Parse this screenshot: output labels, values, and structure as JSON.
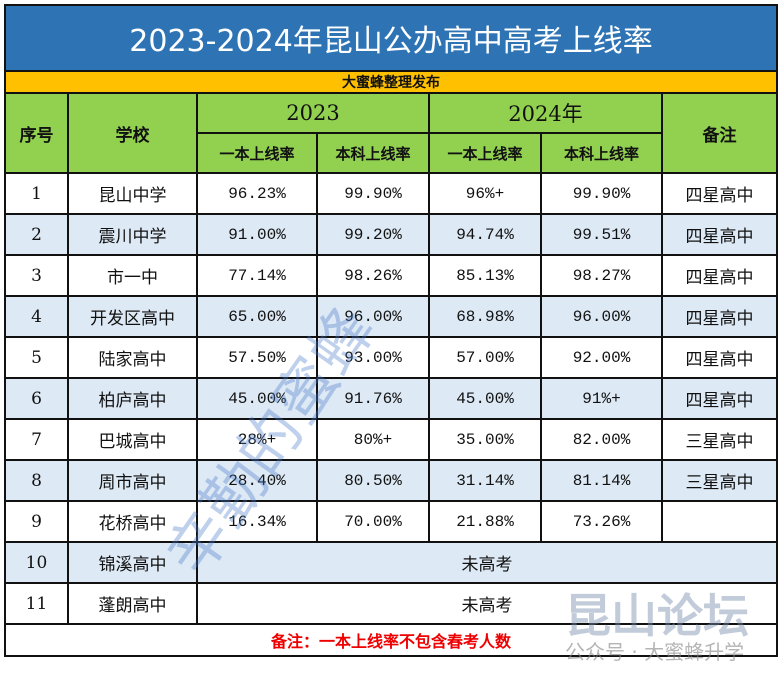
{
  "title": "2023-2024年昆山公办高中高考上线率",
  "publisher": "大蜜蜂整理发布",
  "headers": {
    "index": "序号",
    "school": "学校",
    "y2023": "2023",
    "y2024": "2024年",
    "note": "备注",
    "tier1": "一本上线率",
    "bachelor": "本科上线率"
  },
  "rows": [
    {
      "no": "1",
      "school": "昆山中学",
      "a23": "96.23%",
      "b23": "99.90%",
      "a24": "96%+",
      "b24": "99.90%",
      "note": "四星高中"
    },
    {
      "no": "2",
      "school": "震川中学",
      "a23": "91.00%",
      "b23": "99.20%",
      "a24": "94.74%",
      "b24": "99.51%",
      "note": "四星高中"
    },
    {
      "no": "3",
      "school": "市一中",
      "a23": "77.14%",
      "b23": "98.26%",
      "a24": "85.13%",
      "b24": "98.27%",
      "note": "四星高中"
    },
    {
      "no": "4",
      "school": "开发区高中",
      "a23": "65.00%",
      "b23": "96.00%",
      "a24": "68.98%",
      "b24": "96.00%",
      "note": "四星高中"
    },
    {
      "no": "5",
      "school": "陆家高中",
      "a23": "57.50%",
      "b23": "93.00%",
      "a24": "57.00%",
      "b24": "92.00%",
      "note": "四星高中"
    },
    {
      "no": "6",
      "school": "柏庐高中",
      "a23": "45.00%",
      "b23": "91.76%",
      "a24": "45.00%",
      "b24": "91%+",
      "note": "四星高中"
    },
    {
      "no": "7",
      "school": "巴城高中",
      "a23": "28%+",
      "b23": "80%+",
      "a24": "35.00%",
      "b24": "82.00%",
      "note": "三星高中"
    },
    {
      "no": "8",
      "school": "周市高中",
      "a23": "28.40%",
      "b23": "80.50%",
      "a24": "31.14%",
      "b24": "81.14%",
      "note": "三星高中"
    },
    {
      "no": "9",
      "school": "花桥高中",
      "a23": "16.34%",
      "b23": "70.00%",
      "a24": "21.88%",
      "b24": "73.26%",
      "note": ""
    }
  ],
  "no_exam": [
    {
      "no": "10",
      "school": "锦溪高中",
      "text": "未高考"
    },
    {
      "no": "11",
      "school": "蓬朗高中",
      "text": "未高考"
    }
  ],
  "footnote": "备注：一本上线率不包含春考人数",
  "watermarks": {
    "diagonal": "辛勤的蜜蜂",
    "forum": "昆山论坛",
    "account": "公众号 · 大蜜蜂升学"
  }
}
